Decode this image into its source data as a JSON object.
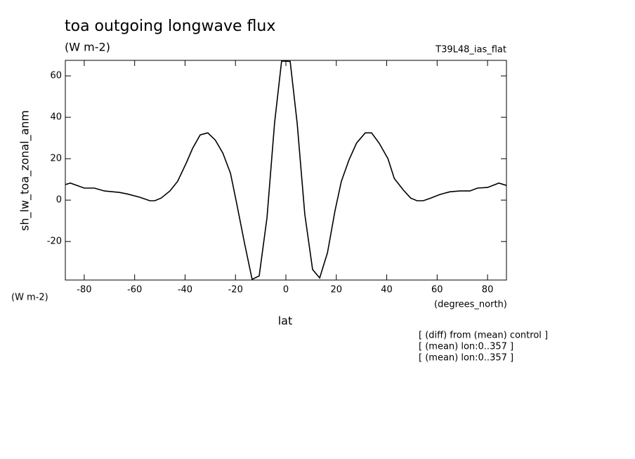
{
  "chart_data": {
    "type": "line",
    "title": "toa outgoing longwave flux",
    "units": "(W m-2)",
    "run_label": "T39L48_ias_flat",
    "y_label": "sh_lw_toa_zonal_anm",
    "y_units": "(W m-2)",
    "x_units": "(degrees_north)",
    "x_label": "lat",
    "notes": [
      "[ (diff) from (mean) control ]",
      "[ (mean) lon:0..357 ]",
      "[ (mean) lon:0..357 ]"
    ],
    "xlim": [
      -87.5,
      87.5
    ],
    "ylim": [
      -38.6,
      67.5
    ],
    "xticks": [
      -80,
      -60,
      -40,
      -20,
      0,
      20,
      40,
      60,
      80
    ],
    "yticks": [
      -20,
      0,
      20,
      40,
      60
    ],
    "series": [
      {
        "color": "#000000",
        "x": [
          -87.5,
          -85.5,
          -80,
          -76,
          -72,
          -66,
          -63,
          -58,
          -54,
          -52,
          -49.5,
          -46,
          -43,
          -39.5,
          -37,
          -34,
          -31,
          -28,
          -25,
          -22,
          -19.5,
          -16.5,
          -13.4,
          -10.6,
          -7.5,
          -4.5,
          -1.7,
          1.7,
          4.5,
          7.5,
          10.6,
          13.4,
          16.5,
          19.5,
          22,
          25,
          28,
          31.5,
          34,
          37,
          40.5,
          43,
          46.5,
          49.5,
          52,
          54.5,
          57.5,
          61,
          65,
          69,
          73,
          76,
          80,
          84.5,
          87.5
        ],
        "values": [
          7.5,
          8.2,
          5.8,
          5.8,
          4.4,
          3.7,
          3,
          1.4,
          -0.3,
          -0.3,
          1,
          4.4,
          9,
          18,
          25,
          31.5,
          32.5,
          29,
          22.7,
          13,
          -1.7,
          -20.3,
          -38.3,
          -36.6,
          -8.5,
          37.3,
          67.2,
          67,
          37,
          -6.8,
          -33.5,
          -37.6,
          -25.4,
          -5,
          9,
          19.3,
          27.5,
          32.5,
          32.5,
          27.5,
          20,
          10.5,
          5,
          1,
          -0.3,
          -0.3,
          1,
          2.7,
          4,
          4.4,
          4.4,
          5.8,
          6.1,
          8.2,
          7.1
        ]
      }
    ]
  }
}
